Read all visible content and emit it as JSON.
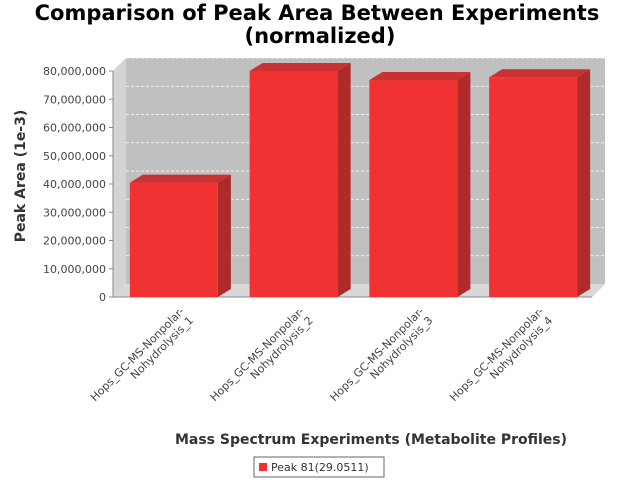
{
  "chart_data": {
    "type": "bar",
    "title_line1": "Comparison of Peak Area Between Experiments",
    "title_line2": "(normalized)",
    "xlabel": "Mass Spectrum Experiments (Metabolite Profiles)",
    "ylabel": "Peak Area (1e-3)",
    "ylim": [
      0,
      80000000
    ],
    "yticks": [
      {
        "value": 0,
        "label": "0"
      },
      {
        "value": 10000000,
        "label": "10,000,000"
      },
      {
        "value": 20000000,
        "label": "20,000,000"
      },
      {
        "value": 30000000,
        "label": "30,000,000"
      },
      {
        "value": 40000000,
        "label": "40,000,000"
      },
      {
        "value": 50000000,
        "label": "50,000,000"
      },
      {
        "value": 60000000,
        "label": "60,000,000"
      },
      {
        "value": 70000000,
        "label": "70,000,000"
      },
      {
        "value": 80000000,
        "label": "80,000,000"
      }
    ],
    "categories": [
      {
        "line1": "Hops_GC-MS-Nonpolar-",
        "line2": "Nohydrolysis_1"
      },
      {
        "line1": "Hops_GC-MS-Nonpolar-",
        "line2": "Nohydrolysis_2"
      },
      {
        "line1": "Hops_GC-MS-Nonpolar-",
        "line2": "Nohydrolysis_3"
      },
      {
        "line1": "Hops_GC-MS-Nonpolar-",
        "line2": "Nohydrolysis_4"
      }
    ],
    "series": [
      {
        "name": "Peak 81(29.0511)",
        "values": [
          40500000,
          80000000,
          76800000,
          77800000
        ],
        "color": "#f03232"
      }
    ],
    "grid": true,
    "legend_position": "bottom",
    "plot_background": "#c0c0c0"
  }
}
